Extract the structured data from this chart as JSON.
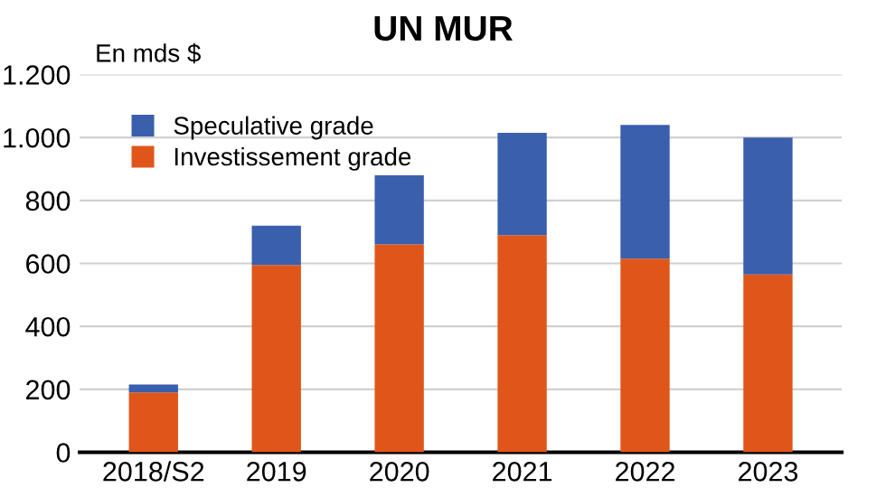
{
  "chart_data": {
    "type": "bar",
    "title": "UN MUR",
    "ylabel": "En mds $",
    "stacked": true,
    "categories": [
      "2018/S2",
      "2019",
      "2020",
      "2021",
      "2022",
      "2023"
    ],
    "series": [
      {
        "name": "Investissement grade",
        "color": "#e0561a",
        "values": [
          190,
          595,
          660,
          690,
          615,
          565
        ]
      },
      {
        "name": "Speculative grade",
        "color": "#3a5fad",
        "values": [
          25,
          125,
          220,
          325,
          425,
          435
        ]
      }
    ],
    "ylim": [
      0,
      1200
    ],
    "yticks": [
      0,
      200,
      400,
      600,
      800,
      {
        "value": 1000,
        "label": "1.000"
      },
      {
        "value": 1200,
        "label": "1.200"
      }
    ],
    "grid": "y",
    "legend": "top left"
  }
}
